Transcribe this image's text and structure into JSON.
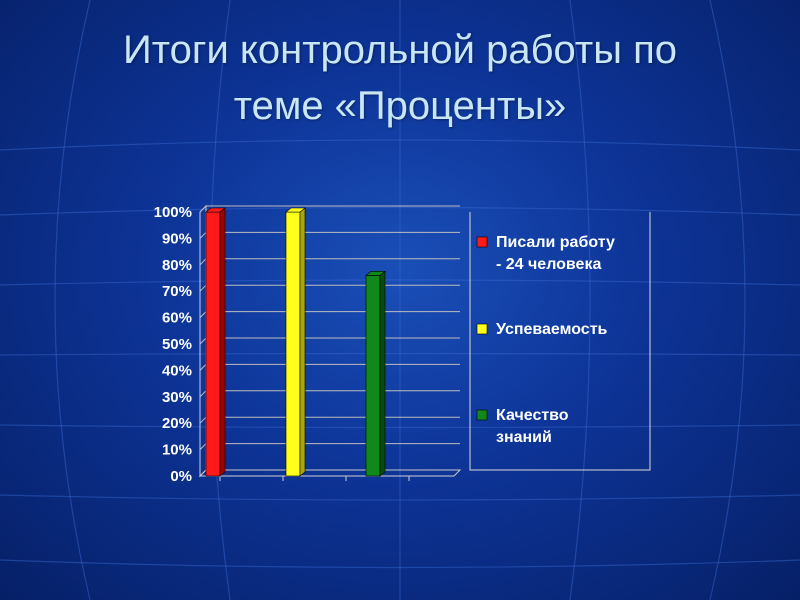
{
  "slide": {
    "title_line1": "Итоги контрольной работы по",
    "title_line2": "теме «Проценты»"
  },
  "chart_data": {
    "type": "bar",
    "title": "",
    "xlabel": "",
    "ylabel": "",
    "ylim": [
      0,
      100
    ],
    "y_ticks": [
      "0%",
      "10%",
      "20%",
      "30%",
      "40%",
      "50%",
      "60%",
      "70%",
      "80%",
      "90%",
      "100%"
    ],
    "grid": true,
    "legend_position": "right",
    "series": [
      {
        "name": "Писали работу - 24 человека",
        "legend_lines": [
          "Писали работу",
          "- 24 человека"
        ],
        "value": 100,
        "color": "#ff1a1a",
        "dark": "#a00000"
      },
      {
        "name": "Успеваемость",
        "legend_lines": [
          "Успеваемость"
        ],
        "value": 100,
        "color": "#ffff1a",
        "dark": "#a8a800"
      },
      {
        "name": "Качество знаний",
        "legend_lines": [
          "Качество",
          "знаний"
        ],
        "value": 76,
        "color": "#11881a",
        "dark": "#064d0b"
      }
    ]
  }
}
